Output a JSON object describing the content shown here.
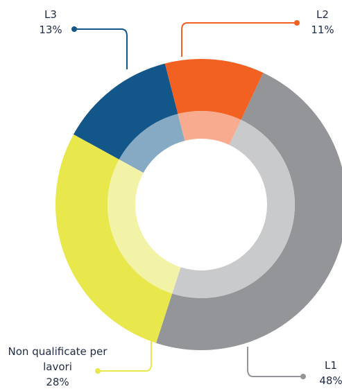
{
  "chart_data": {
    "type": "donut",
    "categories": [
      "L2",
      "L1",
      "Non qualificate per lavori",
      "L3"
    ],
    "values": [
      11,
      48,
      28,
      13
    ],
    "value_labels": [
      "11%",
      "48%",
      "28%",
      "13%"
    ],
    "colors": [
      "#f26122",
      "#939598",
      "#e8e74b",
      "#13568a"
    ],
    "inner_colors": [
      "#f9ab8f",
      "#c9cacc",
      "#f3f3a8",
      "#86aac3"
    ]
  }
}
